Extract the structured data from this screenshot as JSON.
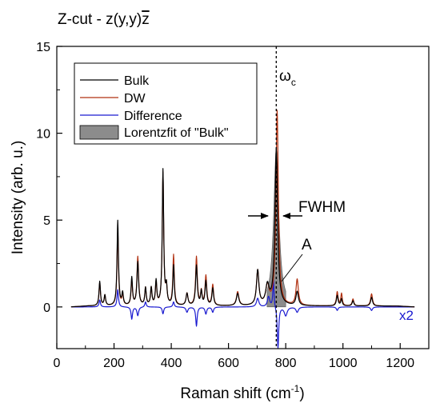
{
  "chart_data": {
    "type": "line",
    "title_prefix": "Z-cut - z(y,y)",
    "title_zbar": "z",
    "xlabel_main": "Raman shift (cm",
    "xlabel_sup": "-1",
    "xlabel_close": ")",
    "ylabel": "Intensity (arb. u.)",
    "xlim": [
      0,
      1300
    ],
    "ylim": [
      -2.4,
      15
    ],
    "x_ticks": [
      0,
      200,
      400,
      600,
      800,
      1000,
      1200
    ],
    "y_ticks": [
      0,
      5,
      10,
      15
    ],
    "legend": {
      "position": "top-left",
      "entries": [
        {
          "label": "Bulk",
          "color": "#000000",
          "kind": "line"
        },
        {
          "label": "DW",
          "color": "#b03010",
          "kind": "line"
        },
        {
          "label": "Difference",
          "color": "#1a1ad0",
          "kind": "line"
        },
        {
          "label": "Lorentzfit of \"Bulk\"",
          "color": "#8c8c8c",
          "kind": "area"
        }
      ]
    },
    "annotations": {
      "omega_main": "ω",
      "omega_sub": "c",
      "omega_x": 767,
      "fwhm": "FWHM",
      "area": "A",
      "difference_scale": "x2"
    },
    "lorentz_fit": {
      "center": 767,
      "amplitude": 9.1,
      "fwhm": 22,
      "range": [
        735,
        800
      ]
    },
    "series": [
      {
        "name": "Bulk",
        "color": "#000000",
        "baseline": 0.05,
        "peaks": [
          [
            150,
            1.4,
            6
          ],
          [
            168,
            0.6,
            6
          ],
          [
            213,
            4.9,
            6
          ],
          [
            230,
            0.7,
            6
          ],
          [
            262,
            1.6,
            6
          ],
          [
            283,
            2.5,
            7
          ],
          [
            310,
            1.0,
            6
          ],
          [
            330,
            1.0,
            6
          ],
          [
            347,
            1.4,
            6
          ],
          [
            371,
            7.8,
            6
          ],
          [
            383,
            1.0,
            6
          ],
          [
            408,
            2.3,
            6
          ],
          [
            455,
            0.7,
            8
          ],
          [
            488,
            2.3,
            7
          ],
          [
            505,
            0.8,
            6
          ],
          [
            521,
            1.4,
            7
          ],
          [
            545,
            1.0,
            7
          ],
          [
            632,
            0.7,
            10
          ],
          [
            702,
            2.0,
            10
          ],
          [
            736,
            1.1,
            14
          ],
          [
            767,
            9.0,
            11
          ],
          [
            840,
            0.8,
            10
          ],
          [
            980,
            0.6,
            7
          ],
          [
            995,
            0.4,
            6
          ],
          [
            1035,
            0.3,
            7
          ],
          [
            1100,
            0.5,
            8
          ]
        ]
      },
      {
        "name": "DW",
        "color": "#b03010",
        "baseline": 0.05,
        "peaks": [
          [
            150,
            1.3,
            6
          ],
          [
            168,
            0.6,
            6
          ],
          [
            213,
            4.3,
            6
          ],
          [
            230,
            0.6,
            6
          ],
          [
            262,
            1.4,
            6
          ],
          [
            283,
            2.8,
            7
          ],
          [
            310,
            1.0,
            6
          ],
          [
            330,
            1.0,
            6
          ],
          [
            347,
            1.3,
            6
          ],
          [
            371,
            7.6,
            6
          ],
          [
            383,
            1.0,
            6
          ],
          [
            408,
            2.9,
            6
          ],
          [
            455,
            0.7,
            8
          ],
          [
            488,
            2.8,
            7
          ],
          [
            505,
            0.8,
            6
          ],
          [
            521,
            1.7,
            7
          ],
          [
            545,
            1.2,
            7
          ],
          [
            632,
            0.8,
            10
          ],
          [
            702,
            2.0,
            10
          ],
          [
            736,
            1.1,
            14
          ],
          [
            770,
            11.2,
            10
          ],
          [
            840,
            1.5,
            10
          ],
          [
            980,
            0.8,
            7
          ],
          [
            995,
            0.7,
            6
          ],
          [
            1035,
            0.4,
            7
          ],
          [
            1100,
            0.7,
            8
          ]
        ]
      },
      {
        "name": "Difference",
        "color": "#1a1ad0",
        "baseline": 0,
        "peaks": [
          [
            150,
            0.4,
            6
          ],
          [
            213,
            1.0,
            6
          ],
          [
            262,
            -0.7,
            6
          ],
          [
            283,
            -0.5,
            7
          ],
          [
            310,
            0.3,
            6
          ],
          [
            371,
            -0.4,
            6
          ],
          [
            408,
            0.3,
            6
          ],
          [
            455,
            -0.3,
            8
          ],
          [
            488,
            -1.1,
            6
          ],
          [
            521,
            -0.4,
            7
          ],
          [
            545,
            -0.3,
            7
          ],
          [
            702,
            0.5,
            10
          ],
          [
            740,
            0.6,
            10
          ],
          [
            757,
            1.6,
            5
          ],
          [
            773,
            -2.4,
            6
          ],
          [
            800,
            -0.5,
            12
          ],
          [
            840,
            -0.3,
            10
          ],
          [
            980,
            -0.2,
            7
          ],
          [
            1100,
            -0.2,
            8
          ]
        ]
      }
    ]
  }
}
